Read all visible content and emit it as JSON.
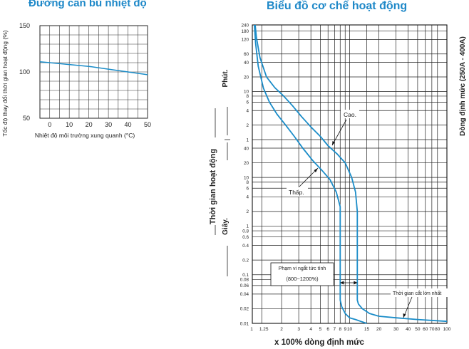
{
  "left_chart": {
    "title": "Đường cân bù nhiệt độ",
    "xlabel": "Nhiệt độ môi trường xung quanh (°C)",
    "ylabel": "Tốc độ thay đổi thời gian hoạt động (%)"
  },
  "right_chart": {
    "title": "Biểu đồ cơ chế hoạt động",
    "xlabel": "x 100% dòng định mức",
    "ylabel": "Thời gian hoạt động",
    "minute_label": "Phút.",
    "second_label": "Giây.",
    "side_label": "Dòng định mức (250A - 400A)",
    "annotations": {
      "high": "Cao.",
      "low": "Thấp.",
      "instant_range_line1": "Phạm vi ngắt tức tính",
      "instant_range_line2": "(800~1200%)",
      "max_breaking_time": "Thời gian cắt lớn nhất"
    }
  },
  "chart_data": [
    {
      "type": "line",
      "title": "Đường cân bù nhiệt độ",
      "xlabel": "Nhiệt độ môi trường xung quanh (°C)",
      "ylabel": "Tốc độ thay đổi thời gian hoạt động (%)",
      "xlim": [
        -5,
        50
      ],
      "ylim": [
        50,
        150
      ],
      "x_ticks": [
        0,
        10,
        20,
        30,
        40,
        50
      ],
      "y_ticks": [
        50,
        100,
        150
      ],
      "grid": true,
      "series": [
        {
          "x": [
            -5,
            0,
            10,
            20,
            30,
            40,
            50
          ],
          "y": [
            111,
            110,
            108,
            106,
            103,
            100,
            97
          ]
        }
      ]
    },
    {
      "type": "line",
      "title": "Biểu đồ cơ chế hoạt động",
      "xlabel": "x 100% dòng định mức",
      "ylabel": "Thời gian hoạt động",
      "x_scale": "log",
      "y_scale": "log",
      "xlim": [
        1,
        100
      ],
      "x_ticks": [
        1,
        1.25,
        2,
        3,
        4,
        5,
        6,
        7,
        8,
        9,
        10,
        15,
        20,
        30,
        40,
        50,
        60,
        70,
        80,
        100
      ],
      "second_ticks": [
        0.01,
        0.02,
        0.04,
        0.06,
        0.08,
        0.1,
        0.2,
        0.4,
        0.6,
        0.8,
        1,
        2,
        4,
        6,
        8,
        10,
        20,
        40
      ],
      "minute_ticks": [
        1,
        2,
        4,
        6,
        8,
        10,
        20,
        40,
        60,
        120,
        180,
        240
      ],
      "grid": true,
      "series": [
        {
          "name": "Cao.",
          "x": [
            1.07,
            1.1,
            1.2,
            1.4,
            1.7,
            2.1,
            2.6,
            3.2,
            4.0,
            5.0,
            6.0,
            7.5,
            9.0,
            10.5,
            11.5,
            12.0,
            12.0,
            12.0,
            12.3,
            13.5,
            16,
            20,
            30,
            50,
            100
          ],
          "y": [
            14400,
            8000,
            3000,
            1200,
            720,
            480,
            300,
            180,
            110,
            70,
            45,
            30,
            20,
            10,
            5,
            2,
            0.5,
            0.03,
            0.025,
            0.02,
            0.016,
            0.014,
            0.013,
            0.012,
            0.011
          ]
        },
        {
          "name": "Thấp.",
          "x": [
            1.05,
            1.08,
            1.15,
            1.3,
            1.5,
            1.8,
            2.2,
            2.7,
            3.3,
            4.2,
            5.2,
            6.3,
            7.3,
            8.0,
            8.0,
            8.0,
            8.3,
            9.0,
            10.0,
            11.5,
            13,
            15
          ],
          "y": [
            14400,
            6000,
            2000,
            700,
            360,
            200,
            120,
            70,
            40,
            22,
            14,
            9,
            5,
            2.5,
            0.5,
            0.03,
            0.022,
            0.016,
            0.013,
            0.012,
            0.011,
            0.01
          ]
        }
      ]
    }
  ],
  "colors": {
    "curve": "#1a8cc8",
    "title": "#1e88c8"
  }
}
